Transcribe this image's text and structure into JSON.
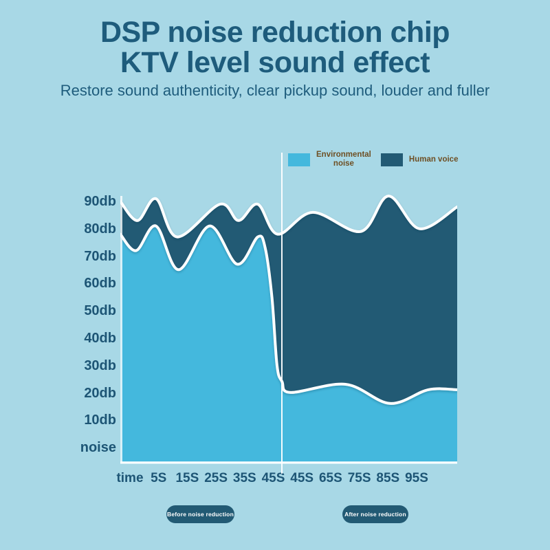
{
  "header": {
    "title_line1": "DSP noise reduction chip",
    "title_line2": "KTV level sound effect",
    "subtitle": "Restore sound authenticity, clear pickup sound, louder and fuller"
  },
  "colors": {
    "background": "#a8d8e6",
    "environmental_noise_fill": "#44b8dd",
    "human_voice_fill": "#225a74",
    "curve_outline": "#ffffff",
    "heading_text": "#1e5c7c",
    "axis_text": "#1d5575",
    "legend_text": "#6e4f24",
    "pill_background": "#225a74",
    "pill_text": "#ffffff"
  },
  "chart_data": {
    "type": "area",
    "title": "",
    "xlabel": "time",
    "ylabel": "db",
    "ylim": [
      0,
      100
    ],
    "grid": false,
    "legend_position": "top-right",
    "y_tick_labels": [
      "90db",
      "80db",
      "70db",
      "60db",
      "50db",
      "40db",
      "30db",
      "20db",
      "10db",
      "noise"
    ],
    "x_tick_labels": [
      "time",
      "5S",
      "15S",
      "25S",
      "35S",
      "45S",
      "45S",
      "65S",
      "75S",
      "85S",
      "95S"
    ],
    "legend_items": [
      {
        "name": "Environmental noise",
        "line1": "Environmental",
        "line2": "noise",
        "color": "#44b8dd"
      },
      {
        "name": "Human voice",
        "line1": "Human voice",
        "line2": "",
        "color": "#225a74"
      }
    ],
    "divider": {
      "position_pct": 48,
      "color": "#ffffff",
      "meaning": "noise reduction switched on at 45S"
    },
    "sections": [
      {
        "label": "Before noise reduction",
        "x_range_pct": [
          0,
          48
        ]
      },
      {
        "label": "After noise reduction",
        "x_range_pct": [
          48,
          100
        ]
      }
    ],
    "series": [
      {
        "name": "Environmental noise",
        "color": "#44b8dd",
        "outline": "#ffffff",
        "meaning": "upper boundary of light-blue band, db vs time (pct across x-axis)",
        "points_pct_db": [
          [
            0,
            78
          ],
          [
            4.7,
            72
          ],
          [
            10.6,
            81
          ],
          [
            17.3,
            65
          ],
          [
            26.5,
            81
          ],
          [
            34.7,
            67
          ],
          [
            40.8,
            77
          ],
          [
            43,
            73
          ],
          [
            45,
            55
          ],
          [
            46.5,
            30
          ],
          [
            48,
            24
          ],
          [
            50.6,
            20
          ],
          [
            66.9,
            23
          ],
          [
            80,
            16
          ],
          [
            91.4,
            21
          ],
          [
            100,
            21
          ]
        ]
      },
      {
        "name": "Human voice",
        "color": "#225a74",
        "outline": "#ffffff",
        "meaning": "upper boundary of dark band stacked above environmental noise, db vs time (pct across x-axis)",
        "points_pct_db": [
          [
            0,
            90
          ],
          [
            5.1,
            83
          ],
          [
            10.6,
            91
          ],
          [
            16.9,
            77
          ],
          [
            29.6,
            89
          ],
          [
            35.1,
            83
          ],
          [
            40.8,
            89
          ],
          [
            46.7,
            78
          ],
          [
            57.1,
            86
          ],
          [
            71.4,
            79
          ],
          [
            79.6,
            92
          ],
          [
            88.8,
            80
          ],
          [
            100,
            88
          ]
        ]
      }
    ]
  }
}
